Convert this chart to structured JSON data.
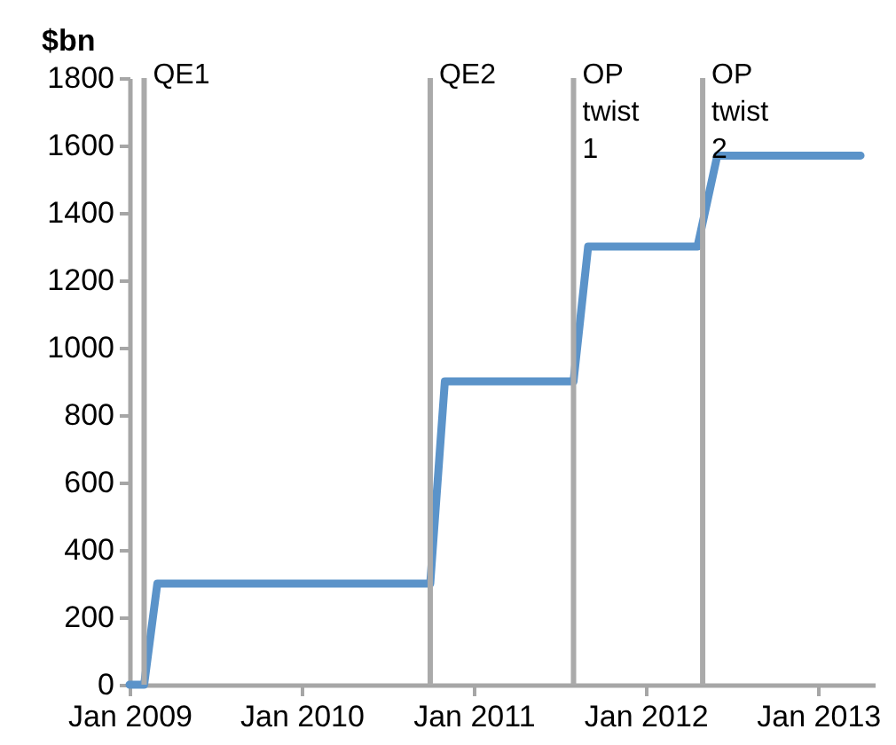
{
  "chart_data": {
    "type": "step",
    "ylabel": "$bn",
    "x": [
      "2009-01",
      "2009-02",
      "2009-03",
      "2010-10",
      "2010-11",
      "2011-08",
      "2011-09",
      "2012-04-20",
      "2012-06",
      "2013-04"
    ],
    "series": [
      {
        "color": "#5b93c9",
        "values": [
          0,
          0,
          300,
          300,
          900,
          900,
          1300,
          1300,
          1570,
          1570
        ]
      }
    ],
    "xlim": [
      "2009-01",
      "2013-05"
    ],
    "xticks": [
      {
        "value": "2009-01",
        "label": "Jan 2009"
      },
      {
        "value": "2010-01",
        "label": "Jan 2010"
      },
      {
        "value": "2011-01",
        "label": "Jan 2011"
      },
      {
        "value": "2012-01",
        "label": "Jan 2012"
      },
      {
        "value": "2013-01",
        "label": "Jan 2013"
      }
    ],
    "ylim": [
      0,
      1800
    ],
    "yticks": [
      0,
      200,
      400,
      600,
      800,
      1000,
      1200,
      1400,
      1600,
      1800
    ],
    "ref_lines": [
      {
        "axis": "x",
        "value": "2009-02",
        "label": "QE1",
        "color": "#aaaaaa"
      },
      {
        "axis": "x",
        "value": "2010-10",
        "label": "QE2",
        "color": "#aaaaaa"
      },
      {
        "axis": "x",
        "value": "2011-08",
        "label": "OP twist 1",
        "color": "#aaaaaa"
      },
      {
        "axis": "x",
        "value": "2012-05",
        "label": "OP twist 2",
        "color": "#aaaaaa"
      }
    ],
    "grid": false,
    "marker": "none",
    "line_style": "solid"
  }
}
